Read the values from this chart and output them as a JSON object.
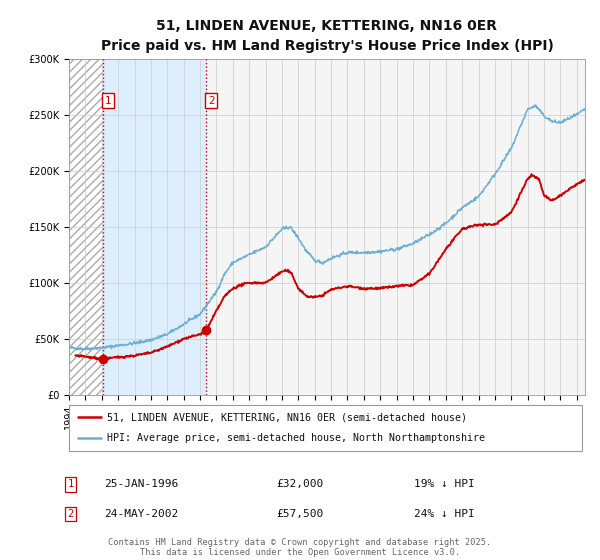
{
  "title": "51, LINDEN AVENUE, KETTERING, NN16 0ER",
  "subtitle": "Price paid vs. HM Land Registry's House Price Index (HPI)",
  "legend_line1": "51, LINDEN AVENUE, KETTERING, NN16 0ER (semi-detached house)",
  "legend_line2": "HPI: Average price, semi-detached house, North Northamptonshire",
  "table_rows": [
    {
      "num": "1",
      "date": "25-JAN-1996",
      "price": "£32,000",
      "hpi": "19% ↓ HPI"
    },
    {
      "num": "2",
      "date": "24-MAY-2002",
      "price": "£57,500",
      "hpi": "24% ↓ HPI"
    }
  ],
  "footnote": "Contains HM Land Registry data © Crown copyright and database right 2025.\nThis data is licensed under the Open Government Licence v3.0.",
  "sale1_year": 1996.07,
  "sale1_price": 32000,
  "sale2_year": 2002.39,
  "sale2_price": 57500,
  "vline1_year": 1996.07,
  "vline2_year": 2002.39,
  "xmin": 1994.0,
  "xmax": 2025.5,
  "ymin": 0,
  "ymax": 300000,
  "yticks": [
    0,
    50000,
    100000,
    150000,
    200000,
    250000,
    300000
  ],
  "ylabels": [
    "£0",
    "£50K",
    "£100K",
    "£150K",
    "£200K",
    "£250K",
    "£300K"
  ],
  "red_color": "#cc0000",
  "blue_color": "#6baed6",
  "shade_color": "#ddeeff",
  "bg_color": "#f5f5f5",
  "grid_color": "#cccccc",
  "title_fontsize": 10,
  "subtitle_fontsize": 9,
  "axis_fontsize": 7
}
